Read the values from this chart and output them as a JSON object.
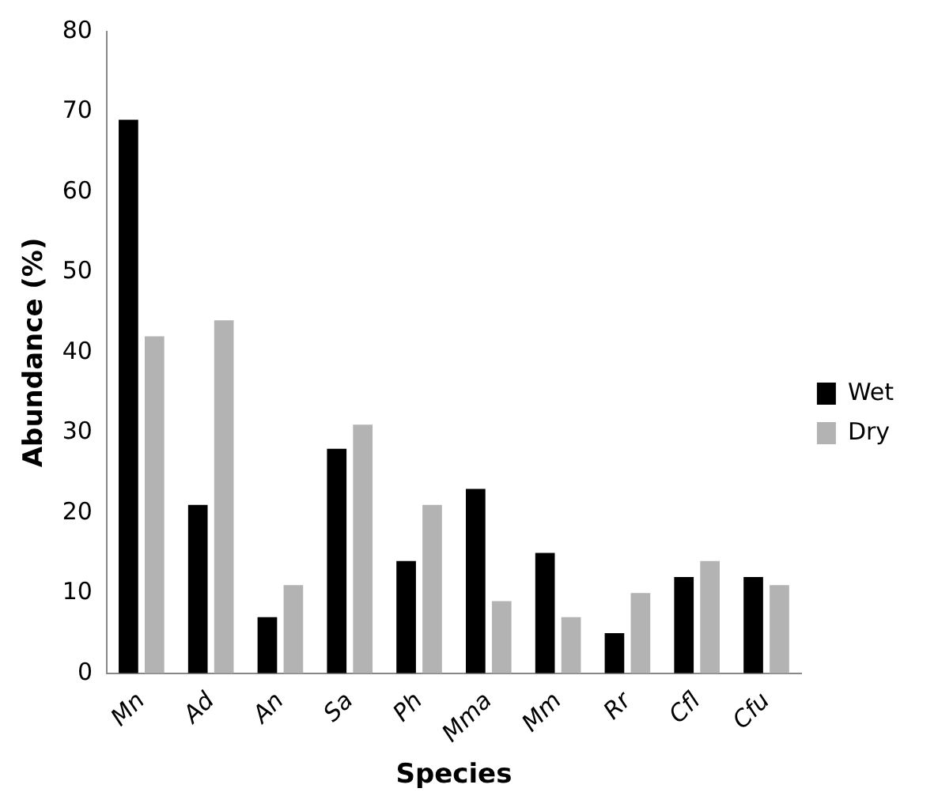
{
  "chart_data": {
    "type": "bar",
    "xlabel": "Species",
    "ylabel": "Abundance (%)",
    "categories": [
      "Mn",
      "Ad",
      "An",
      "Sa",
      "Ph",
      "Mma",
      "Mm",
      "Rr",
      "Cfl",
      "Cfu"
    ],
    "series": [
      {
        "name": "Wet",
        "color": "#000000",
        "values": [
          69,
          21,
          7,
          28,
          14,
          23,
          15,
          5,
          12,
          12
        ]
      },
      {
        "name": "Dry",
        "color": "#b3b3b3",
        "values": [
          42,
          44,
          11,
          31,
          21,
          9,
          7,
          10,
          14,
          11
        ]
      }
    ],
    "ylim": [
      0,
      80
    ],
    "yticks": [
      0,
      10,
      20,
      30,
      40,
      50,
      60,
      70,
      80
    ],
    "grid": false,
    "legend": "right"
  }
}
